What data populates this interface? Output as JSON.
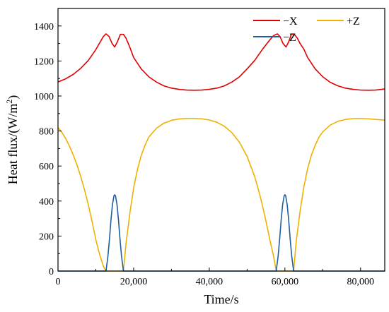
{
  "chart_data": {
    "type": "line",
    "xlabel": "Time/s",
    "ylabel_main": "Heat flux/(W/m",
    "ylabel_sup": "2",
    "ylabel_close": ")",
    "xlim": [
      0,
      86400
    ],
    "ylim": [
      0,
      1500
    ],
    "x_ticks": [
      0,
      20000,
      40000,
      60000,
      80000
    ],
    "x_tick_labels": [
      "0",
      "20,000",
      "40,000",
      "60,000",
      "80,000"
    ],
    "y_ticks": [
      0,
      200,
      400,
      600,
      800,
      1000,
      1200,
      1400
    ],
    "y_tick_labels": [
      "0",
      "200",
      "400",
      "600",
      "800",
      "1000",
      "1200",
      "1400"
    ],
    "grid": false,
    "legend_position": "top-right",
    "series": [
      {
        "name": "−X",
        "color": "#e00000",
        "x": [
          0,
          2000,
          4000,
          6000,
          8000,
          10000,
          11000,
          12000,
          12700,
          13500,
          14300,
          15000,
          15700,
          16500,
          17300,
          18000,
          19000,
          20000,
          22000,
          24000,
          26000,
          28000,
          30000,
          32000,
          34000,
          36000,
          38000,
          40000,
          42000,
          44000,
          46000,
          48000,
          50000,
          52000,
          54000,
          56000,
          57000,
          58000,
          58700,
          59500,
          60300,
          61000,
          61700,
          62500,
          63300,
          64000,
          65000,
          66000,
          68000,
          70000,
          72000,
          74000,
          76000,
          78000,
          80000,
          82000,
          84000,
          86400
        ],
        "values": [
          1080,
          1098,
          1123,
          1158,
          1203,
          1265,
          1303,
          1340,
          1355,
          1340,
          1300,
          1280,
          1310,
          1352,
          1352,
          1330,
          1278,
          1220,
          1155,
          1110,
          1080,
          1058,
          1045,
          1038,
          1034,
          1033,
          1034,
          1038,
          1045,
          1058,
          1080,
          1110,
          1155,
          1203,
          1265,
          1320,
          1345,
          1355,
          1340,
          1300,
          1280,
          1310,
          1352,
          1352,
          1330,
          1300,
          1268,
          1220,
          1155,
          1110,
          1078,
          1058,
          1045,
          1038,
          1034,
          1033,
          1034,
          1040
        ]
      },
      {
        "name": "+Z",
        "color": "#f0b000",
        "x": [
          0,
          1000,
          2000,
          3000,
          4000,
          5000,
          6000,
          7000,
          8000,
          9000,
          10000,
          11000,
          12000,
          12700,
          13000,
          14000,
          15000,
          16000,
          17000,
          17300,
          18000,
          19000,
          20000,
          21000,
          22000,
          23000,
          24000,
          26000,
          28000,
          30000,
          32000,
          34000,
          36000,
          38000,
          40000,
          42000,
          44000,
          46000,
          48000,
          50000,
          52000,
          53000,
          54000,
          55000,
          56000,
          57000,
          57700,
          58000,
          59000,
          60000,
          61000,
          62000,
          62300,
          63000,
          64000,
          65000,
          66000,
          67000,
          68000,
          69000,
          70000,
          72000,
          74000,
          76000,
          78000,
          80000,
          82000,
          84000,
          86400
        ],
        "values": [
          820,
          793,
          758,
          715,
          665,
          607,
          541,
          465,
          380,
          284,
          180,
          95,
          28,
          0,
          0,
          0,
          0,
          0,
          0,
          0,
          160,
          330,
          475,
          580,
          660,
          718,
          765,
          815,
          845,
          861,
          869,
          872,
          872,
          870,
          863,
          850,
          827,
          790,
          735,
          655,
          540,
          465,
          380,
          284,
          180,
          85,
          0,
          0,
          0,
          0,
          0,
          0,
          0,
          170,
          340,
          480,
          585,
          662,
          718,
          765,
          795,
          834,
          855,
          866,
          871,
          872,
          870,
          866,
          862
        ]
      },
      {
        "name": "−Z",
        "color": "#1f5fa0",
        "x": [
          0,
          12700,
          13200,
          13600,
          14000,
          14400,
          14800,
          15000,
          15200,
          15600,
          16000,
          16400,
          16800,
          17300,
          57700,
          58200,
          58600,
          59000,
          59400,
          59800,
          60000,
          60200,
          60600,
          61000,
          61400,
          61800,
          62300,
          86400
        ],
        "values": [
          0,
          0,
          85,
          180,
          290,
          380,
          430,
          436,
          430,
          380,
          290,
          180,
          85,
          0,
          0,
          85,
          180,
          290,
          380,
          430,
          436,
          430,
          380,
          290,
          180,
          85,
          0,
          0
        ]
      }
    ]
  }
}
